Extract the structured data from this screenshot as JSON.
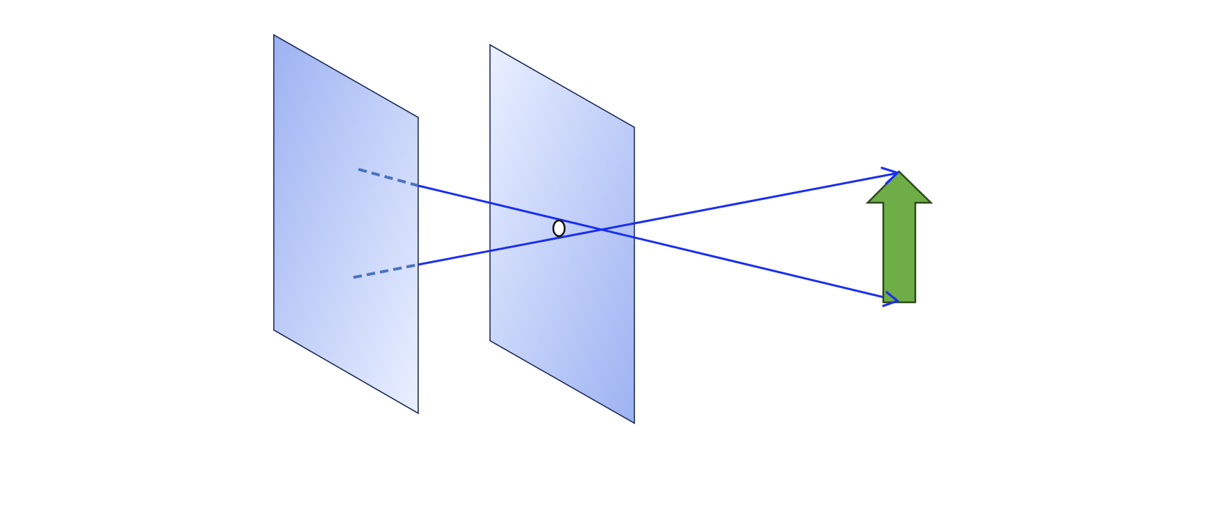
{
  "diagram": {
    "description_labels": [],
    "colors": {
      "background": "#ffffff",
      "plane_edge": "#1f2d5a",
      "plane_light": "#eaf0ff",
      "plane_dark": "#9db2f2",
      "ray": "#1a2ef0",
      "ray_hidden": "#4a72c4",
      "object_fill": "#6fad46",
      "object_stroke": "#2d4a1e",
      "aperture_stroke": "#111111",
      "aperture_fill": "#ffffff"
    },
    "elements": {
      "image_plane": "image-plane",
      "pinhole_plane": "pinhole-plane",
      "pinhole": "pinhole-aperture",
      "object": "object-arrow",
      "rays": [
        "ray-top-to-bottom",
        "ray-bottom-to-top"
      ]
    }
  }
}
